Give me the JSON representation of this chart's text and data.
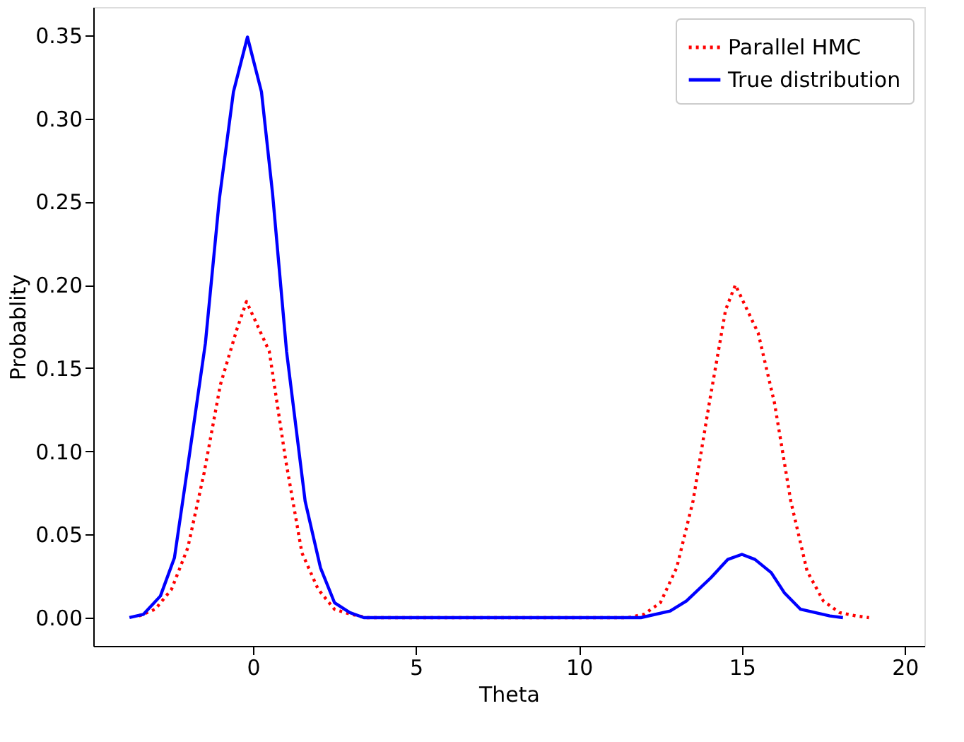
{
  "chart_data": {
    "type": "line",
    "xlabel": "Theta",
    "ylabel": "Probablity",
    "xlim": [
      -4.9,
      20.6
    ],
    "ylim": [
      -0.017,
      0.367
    ],
    "xticks": [
      0,
      5,
      10,
      15,
      20
    ],
    "yticks": [
      {
        "value": 0,
        "label": "0.00"
      },
      {
        "value": 0.05,
        "label": "0.05"
      },
      {
        "value": 0.1,
        "label": "0.10"
      },
      {
        "value": 0.15,
        "label": "0.15"
      },
      {
        "value": 0.2,
        "label": "0.20"
      },
      {
        "value": 0.25,
        "label": "0.25"
      },
      {
        "value": 0.3,
        "label": "0.30"
      },
      {
        "value": 0.35,
        "label": "0.35"
      }
    ],
    "grid": false,
    "legend": "top right",
    "marker": "none",
    "series": [
      {
        "name": "Parallel HMC",
        "color": "#ff0000",
        "line_style": "dotted",
        "x": [
          -3.5,
          -3.0,
          -2.5,
          -2.0,
          -1.5,
          -1.0,
          -0.5,
          -0.2,
          0.5,
          1.0,
          1.5,
          2.0,
          2.5,
          3.0,
          3.5,
          5.0,
          7.0,
          9.0,
          11.5,
          12.0,
          12.5,
          13.0,
          13.5,
          14.0,
          14.5,
          14.8,
          15.5,
          16.0,
          16.5,
          17.0,
          17.5,
          18.0,
          18.5,
          18.9
        ],
        "values": [
          0.001,
          0.005,
          0.017,
          0.042,
          0.087,
          0.14,
          0.173,
          0.19,
          0.16,
          0.095,
          0.039,
          0.017,
          0.005,
          0.002,
          0.0,
          0.0,
          0.0,
          0.0,
          0.0,
          0.002,
          0.009,
          0.03,
          0.07,
          0.129,
          0.185,
          0.2,
          0.171,
          0.129,
          0.07,
          0.028,
          0.01,
          0.003,
          0.001,
          0.0
        ]
      },
      {
        "name": "True distribution",
        "color": "#0000ff",
        "line_style": "solid",
        "x": [
          -3.79,
          -3.36,
          -2.84,
          -2.41,
          -2.03,
          -1.46,
          -1.03,
          -0.6,
          -0.17,
          0.26,
          0.6,
          1.03,
          1.6,
          2.07,
          2.5,
          2.97,
          3.4,
          5.0,
          7.0,
          9.0,
          11.0,
          11.9,
          12.8,
          13.3,
          14.05,
          14.57,
          15.0,
          15.4,
          15.9,
          16.3,
          16.8,
          17.7,
          18.1
        ],
        "values": [
          0.0,
          0.002,
          0.013,
          0.036,
          0.087,
          0.165,
          0.252,
          0.316,
          0.349,
          0.316,
          0.255,
          0.16,
          0.07,
          0.03,
          0.009,
          0.003,
          0.0,
          0.0,
          0.0,
          0.0,
          0.0,
          0.0,
          0.004,
          0.01,
          0.024,
          0.035,
          0.038,
          0.035,
          0.027,
          0.015,
          0.005,
          0.001,
          0.0
        ]
      }
    ]
  }
}
